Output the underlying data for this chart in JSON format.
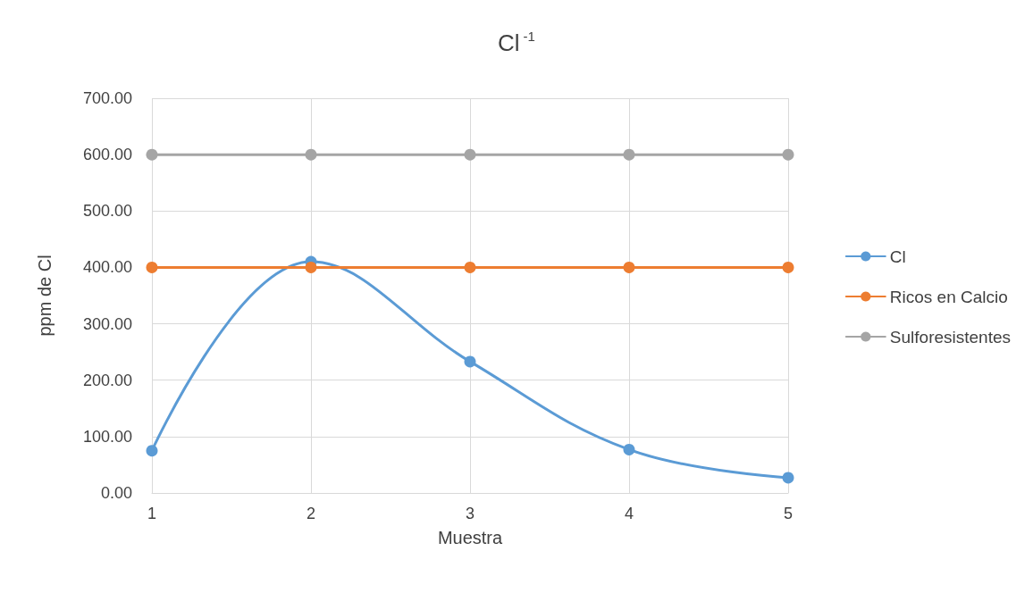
{
  "chart_data": {
    "type": "line",
    "title": "Cl$^{-1}$",
    "xlabel": "Muestra",
    "ylabel": "ppm de Cl",
    "categories": [
      "1",
      "2",
      "3",
      "4",
      "5"
    ],
    "series": [
      {
        "name": "Cl",
        "color": "#5b9bd5",
        "values": [
          75,
          410,
          233,
          77,
          27
        ]
      },
      {
        "name": "Ricos en Calcio",
        "color": "#ed7d31",
        "values": [
          400,
          400,
          400,
          400,
          400
        ]
      },
      {
        "name": "Sulforesistentes",
        "color": "#a5a5a5",
        "values": [
          600,
          600,
          600,
          600,
          600
        ]
      }
    ],
    "ylim": [
      0,
      700
    ],
    "yticks": [
      {
        "value": 0,
        "label": "0.00"
      },
      {
        "value": 100,
        "label": "100.00"
      },
      {
        "value": 200,
        "label": "200.00"
      },
      {
        "value": 300,
        "label": "300.00"
      },
      {
        "value": 400,
        "label": "400.00"
      },
      {
        "value": 500,
        "label": "500.00"
      },
      {
        "value": 600,
        "label": "600.00"
      },
      {
        "value": 700,
        "label": "700.00"
      }
    ],
    "grid": true,
    "legend": "right",
    "marker": "circle",
    "line_style": "solid"
  }
}
